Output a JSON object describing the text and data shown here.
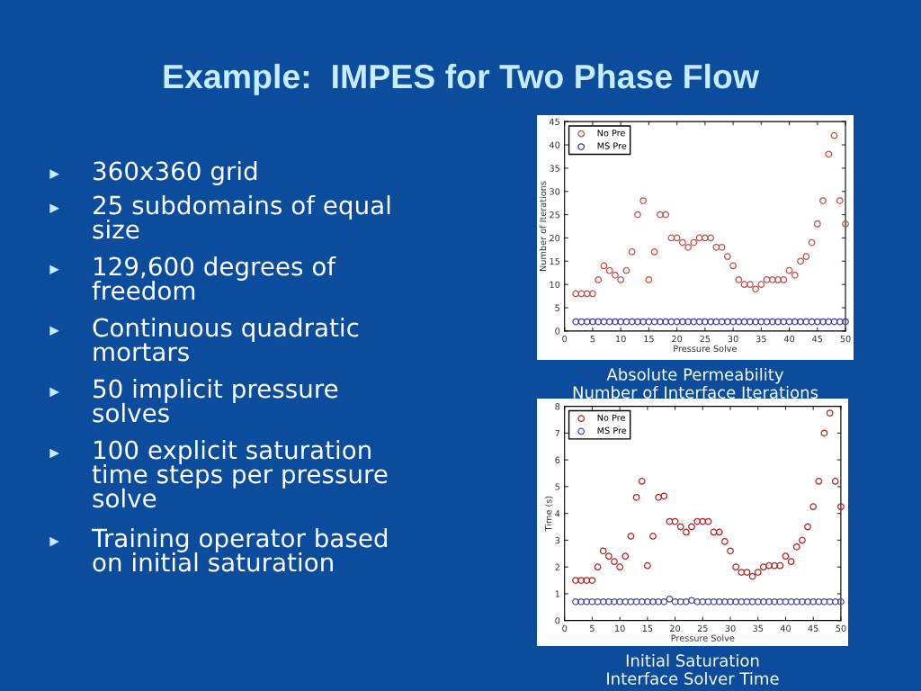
{
  "chart_data": [
    {
      "type": "other",
      "title": "Example:  IMPES for Two Phase Flow",
      "annotations": [
        "360x360 grid",
        "25 subdomains of equal\nsize",
        "129,600 degrees of\nfreedom",
        "Continuous quadratic\nmortars",
        "50 implicit pressure\nsolves",
        "100 explicit saturation\ntime steps per pressure\nsolve",
        "Training operator based\non initial saturation"
      ]
    },
    {
      "type": "scatter",
      "xlabel": "Pressure Solve",
      "ylabel": "Number of Iterations",
      "annotations": [
        "Absolute Permeability",
        "Number of Interface Iterations"
      ],
      "xlim": [
        0,
        50
      ],
      "ylim": [
        0,
        45
      ],
      "xticks": [
        0,
        5,
        10,
        15,
        20,
        25,
        30,
        35,
        40,
        45,
        50
      ],
      "yticks": [
        0,
        5,
        10,
        15,
        20,
        25,
        30,
        35,
        40,
        45
      ],
      "marker": "circle",
      "grid": false,
      "legend": "top left",
      "x": [
        2,
        3,
        4,
        5,
        6,
        7,
        8,
        9,
        10,
        11,
        12,
        13,
        14,
        15,
        16,
        17,
        18,
        19,
        20,
        21,
        22,
        23,
        24,
        25,
        26,
        27,
        28,
        29,
        30,
        31,
        32,
        33,
        34,
        35,
        36,
        37,
        38,
        39,
        40,
        41,
        42,
        43,
        44,
        45,
        46,
        47,
        48,
        49,
        50
      ],
      "series": [
        {
          "name": "No Pre",
          "color": "#c0504d",
          "values": [
            8,
            8,
            8,
            8,
            11,
            14,
            13,
            12,
            11,
            13,
            17,
            25,
            28,
            11,
            17,
            25,
            25,
            20,
            20,
            19,
            18,
            19,
            20,
            20,
            20,
            18,
            18,
            16,
            14,
            11,
            10,
            10,
            9,
            10,
            11,
            11,
            11,
            11,
            13,
            12,
            15,
            16,
            19,
            23,
            28,
            38,
            42,
            28,
            23
          ]
        },
        {
          "name": "MS Pre",
          "color": "#3c3c96",
          "values": [
            2,
            2,
            2,
            2,
            2,
            2,
            2,
            2,
            2,
            2,
            2,
            2,
            2,
            2,
            2,
            2,
            2,
            2,
            2,
            2,
            2,
            2,
            2,
            2,
            2,
            2,
            2,
            2,
            2,
            2,
            2,
            2,
            2,
            2,
            2,
            2,
            2,
            2,
            2,
            2,
            2,
            2,
            2,
            2,
            2,
            2,
            2,
            2,
            2
          ]
        }
      ]
    },
    {
      "type": "scatter",
      "xlabel": "Pressure Solve",
      "ylabel": "Time (s)",
      "annotations": [
        "Initial Saturation",
        "Interface Solver Time"
      ],
      "xlim": [
        0,
        50
      ],
      "ylim": [
        0,
        8
      ],
      "xticks": [
        0,
        5,
        10,
        15,
        20,
        25,
        30,
        35,
        40,
        45,
        50
      ],
      "yticks": [
        0,
        1,
        2,
        3,
        4,
        5,
        6,
        7,
        8
      ],
      "marker": "circle",
      "grid": false,
      "legend": "top left",
      "x": [
        2,
        3,
        4,
        5,
        6,
        7,
        8,
        9,
        10,
        11,
        12,
        13,
        14,
        15,
        16,
        17,
        18,
        19,
        20,
        21,
        22,
        23,
        24,
        25,
        26,
        27,
        28,
        29,
        30,
        31,
        32,
        33,
        34,
        35,
        36,
        37,
        38,
        39,
        40,
        41,
        42,
        43,
        44,
        45,
        46,
        47,
        48,
        49,
        50
      ],
      "series": [
        {
          "name": "No Pre",
          "color": "#b22222",
          "values": [
            1.5,
            1.5,
            1.5,
            1.5,
            2.0,
            2.6,
            2.4,
            2.2,
            2.0,
            2.4,
            3.15,
            4.6,
            5.2,
            2.05,
            3.15,
            4.6,
            4.65,
            3.7,
            3.7,
            3.5,
            3.3,
            3.5,
            3.7,
            3.7,
            3.7,
            3.3,
            3.3,
            2.95,
            2.6,
            2.0,
            1.8,
            1.8,
            1.65,
            1.8,
            2.0,
            2.05,
            2.05,
            2.05,
            2.4,
            2.2,
            2.75,
            3.0,
            3.5,
            4.25,
            5.2,
            7.0,
            7.75,
            5.2,
            4.25
          ]
        },
        {
          "name": "MS Pre",
          "color": "#4a4a9a",
          "values": [
            0.7,
            0.7,
            0.7,
            0.7,
            0.7,
            0.7,
            0.7,
            0.7,
            0.7,
            0.7,
            0.7,
            0.7,
            0.7,
            0.7,
            0.7,
            0.7,
            0.7,
            0.8,
            0.7,
            0.7,
            0.7,
            0.75,
            0.7,
            0.7,
            0.7,
            0.7,
            0.7,
            0.7,
            0.7,
            0.7,
            0.7,
            0.7,
            0.7,
            0.7,
            0.7,
            0.7,
            0.7,
            0.7,
            0.7,
            0.7,
            0.7,
            0.7,
            0.7,
            0.7,
            0.7,
            0.7,
            0.7,
            0.7,
            0.7
          ]
        }
      ]
    }
  ]
}
